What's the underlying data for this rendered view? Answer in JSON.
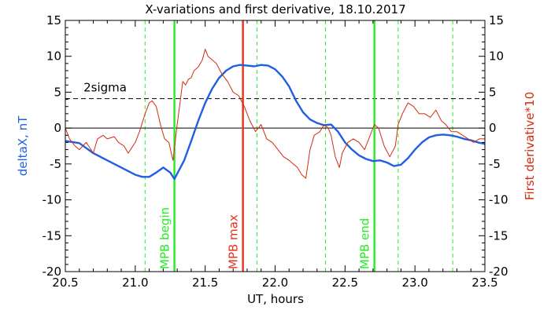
{
  "chart_data": {
    "type": "line",
    "title": "X-variations and first derivative, 18.10.2017",
    "xlabel": "UT, hours",
    "ylabel_left": "deltaX, nT",
    "ylabel_right": "First derivative*10",
    "xlim": [
      20.5,
      23.5
    ],
    "ylim": [
      -20,
      15
    ],
    "xticks": [
      "20.5",
      "21.0",
      "21.5",
      "22.0",
      "22.5",
      "23.0",
      "23.5"
    ],
    "yticks": [
      "-20",
      "-15",
      "-10",
      "-5",
      "0",
      "5",
      "10",
      "15"
    ],
    "colors": {
      "deltaX": "#1f5fe0",
      "derivative": "#d42a10",
      "mpb": "#22ee22",
      "mpb_max": "#e8321a",
      "reference": "#000000"
    },
    "sigma": {
      "label": "2sigma",
      "value": 4.1
    },
    "zero_line": 0,
    "markers": [
      {
        "x": 21.28,
        "label": "MPB begin",
        "color": "#22ee22"
      },
      {
        "x": 21.77,
        "label": "MPB max",
        "color": "#e8321a"
      },
      {
        "x": 22.71,
        "label": "MPB end",
        "color": "#22ee22"
      }
    ],
    "dashed_lines": [
      21.07,
      21.87,
      22.36,
      22.88,
      23.27
    ],
    "series": [
      {
        "key": "deltaX",
        "x": [
          20.5,
          20.6,
          20.7,
          20.8,
          20.9,
          21.0,
          21.05,
          21.1,
          21.15,
          21.2,
          21.25,
          21.28,
          21.35,
          21.4,
          21.45,
          21.5,
          21.55,
          21.6,
          21.65,
          21.7,
          21.75,
          21.8,
          21.85,
          21.9,
          21.95,
          22.0,
          22.05,
          22.1,
          22.15,
          22.2,
          22.25,
          22.3,
          22.35,
          22.4,
          22.45,
          22.5,
          22.55,
          22.6,
          22.65,
          22.7,
          22.75,
          22.8,
          22.85,
          22.9,
          22.95,
          23.0,
          23.05,
          23.1,
          23.15,
          23.2,
          23.25,
          23.3,
          23.35,
          23.4,
          23.45,
          23.5
        ],
        "y": [
          -1.8,
          -2.1,
          -3.5,
          -4.5,
          -5.5,
          -6.5,
          -6.8,
          -6.8,
          -6.2,
          -5.5,
          -6.2,
          -7.1,
          -4.5,
          -1.8,
          1.0,
          3.5,
          5.5,
          7.0,
          8.0,
          8.6,
          8.8,
          8.7,
          8.6,
          8.8,
          8.7,
          8.2,
          7.2,
          5.8,
          3.8,
          2.2,
          1.2,
          0.7,
          0.4,
          0.5,
          -0.5,
          -2.0,
          -3.0,
          -3.8,
          -4.3,
          -4.6,
          -4.5,
          -4.8,
          -5.3,
          -5.1,
          -4.2,
          -3.0,
          -2.0,
          -1.3,
          -1.0,
          -0.9,
          -1.0,
          -1.2,
          -1.5,
          -1.7,
          -2.0,
          -2.2
        ]
      },
      {
        "key": "derivative",
        "x": [
          20.5,
          20.53,
          20.57,
          20.6,
          20.65,
          20.7,
          20.73,
          20.77,
          20.8,
          20.85,
          20.88,
          20.92,
          20.95,
          21.0,
          21.03,
          21.07,
          21.1,
          21.12,
          21.15,
          21.18,
          21.21,
          21.24,
          21.27,
          21.3,
          21.32,
          21.34,
          21.36,
          21.38,
          21.4,
          21.42,
          21.45,
          21.48,
          21.5,
          21.52,
          21.55,
          21.58,
          21.62,
          21.66,
          21.7,
          21.74,
          21.78,
          21.82,
          21.86,
          21.9,
          21.94,
          21.98,
          22.02,
          22.06,
          22.1,
          22.13,
          22.16,
          22.19,
          22.22,
          22.25,
          22.28,
          22.32,
          22.35,
          22.38,
          22.4,
          22.43,
          22.46,
          22.48,
          22.52,
          22.56,
          22.6,
          22.64,
          22.68,
          22.71,
          22.74,
          22.78,
          22.82,
          22.86,
          22.88,
          22.91,
          22.95,
          22.99,
          23.03,
          23.07,
          23.11,
          23.15,
          23.19,
          23.22,
          23.26,
          23.3,
          23.34,
          23.38,
          23.42,
          23.46,
          23.5
        ],
        "y": [
          0.0,
          -1.5,
          -2.5,
          -3.0,
          -2.0,
          -3.5,
          -1.5,
          -1.0,
          -1.5,
          -1.2,
          -2.0,
          -2.5,
          -3.5,
          -2.0,
          -0.5,
          2.0,
          3.5,
          3.8,
          3.0,
          0.5,
          -1.5,
          -2.0,
          -4.5,
          0.5,
          3.5,
          6.5,
          6.0,
          6.8,
          7.0,
          8.0,
          8.5,
          9.5,
          11.0,
          10.0,
          9.5,
          9.0,
          7.5,
          6.5,
          5.0,
          4.5,
          3.0,
          1.0,
          -0.5,
          0.5,
          -1.5,
          -2.0,
          -3.0,
          -4.0,
          -4.5,
          -5.0,
          -5.5,
          -6.5,
          -7.0,
          -3.0,
          -1.0,
          -0.5,
          0.5,
          0.0,
          -1.0,
          -4.0,
          -5.5,
          -3.5,
          -2.0,
          -1.5,
          -2.0,
          -3.0,
          -1.0,
          0.5,
          0.0,
          -2.5,
          -4.0,
          -2.5,
          0.5,
          2.0,
          3.5,
          3.0,
          2.0,
          2.0,
          1.5,
          2.5,
          1.0,
          0.5,
          -0.5,
          -0.5,
          -1.0,
          -1.5,
          -2.0,
          -1.5,
          -1.5
        ]
      }
    ]
  }
}
